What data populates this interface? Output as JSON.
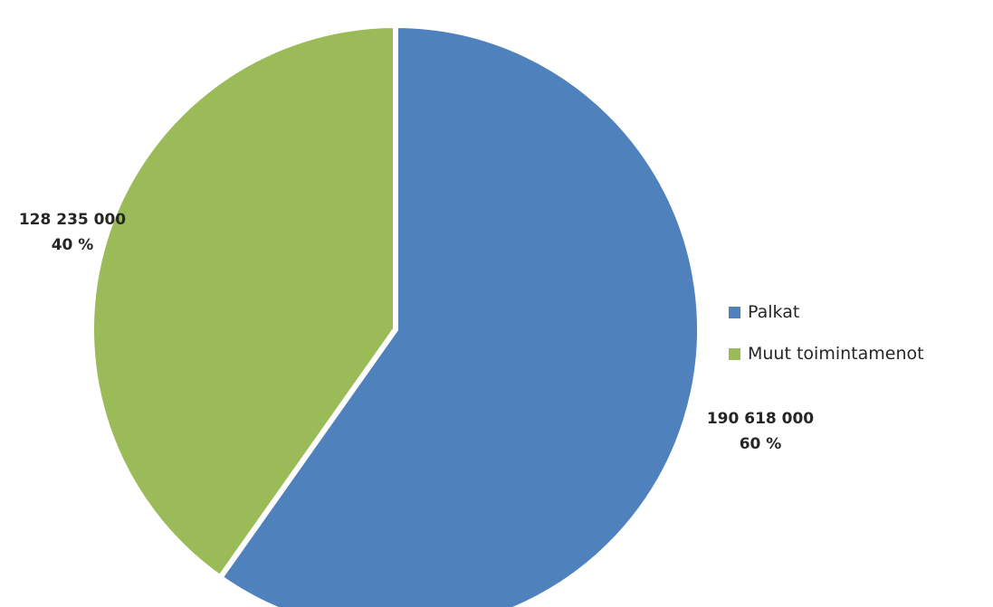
{
  "chart_data": {
    "type": "pie",
    "title": "",
    "legend_position": "right",
    "slices": [
      {
        "name": "Palkat",
        "value": 190618000,
        "value_label": "190 618 000",
        "percent_label": "60 %",
        "color": "#4f81bd"
      },
      {
        "name": "Muut toimintamenot",
        "value": 128235000,
        "value_label": "128 235 000",
        "percent_label": "40 %",
        "color": "#9bbb59"
      }
    ]
  }
}
